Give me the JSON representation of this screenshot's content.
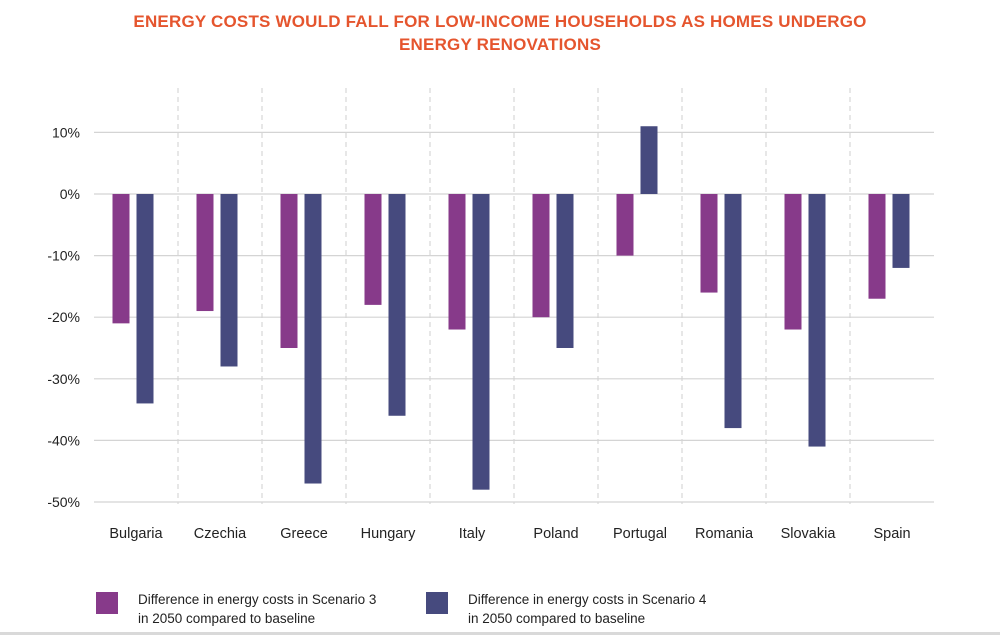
{
  "chart_data": {
    "type": "bar",
    "title": "ENERGY COSTS WOULD FALL FOR LOW-INCOME HOUSEHOLDS AS HOMES UNDERGO ENERGY RENOVATIONS",
    "title_lines": [
      "ENERGY COSTS WOULD FALL FOR LOW-INCOME HOUSEHOLDS AS HOMES UNDERGO",
      "ENERGY RENOVATIONS"
    ],
    "categories": [
      "Bulgaria",
      "Czechia",
      "Greece",
      "Hungary",
      "Italy",
      "Poland",
      "Portugal",
      "Romania",
      "Slovakia",
      "Spain"
    ],
    "series": [
      {
        "name": "Difference in energy costs in Scenario 3 in 2050 compared to baseline",
        "name_lines": [
          "Difference in energy costs in Scenario 3",
          "in 2050 compared to baseline"
        ],
        "color": "#873a8a",
        "values": [
          -21,
          -19,
          -25,
          -18,
          -22,
          -20,
          -10,
          -16,
          -22,
          -17
        ]
      },
      {
        "name": "Difference in energy costs in Scenario 4 in 2050 compared to baseline",
        "name_lines": [
          "Difference in energy costs in Scenario 4",
          "in 2050 compared to baseline"
        ],
        "color": "#464a7e",
        "values": [
          -34,
          -28,
          -47,
          -36,
          -48,
          -25,
          11,
          -38,
          -41,
          -12
        ]
      }
    ],
    "yticks": [
      10,
      0,
      -10,
      -20,
      -30,
      -40,
      -50
    ],
    "ytick_labels": [
      "10%",
      "0%",
      "-10%",
      "-20%",
      "-30%",
      "-40%",
      "-50%"
    ],
    "ylim": [
      -50,
      10
    ],
    "xlabel": "",
    "ylabel": "",
    "grid": true,
    "legend_position": "bottom"
  }
}
